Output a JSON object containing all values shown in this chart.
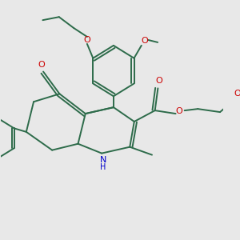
{
  "bg_color": "#e8e8e8",
  "bond_color": "#2d6b4a",
  "o_color": "#cc0000",
  "n_color": "#0000cc",
  "lw": 1.4,
  "figsize": [
    3.0,
    3.0
  ],
  "dpi": 100,
  "xlim": [
    0,
    300
  ],
  "ylim": [
    0,
    300
  ]
}
